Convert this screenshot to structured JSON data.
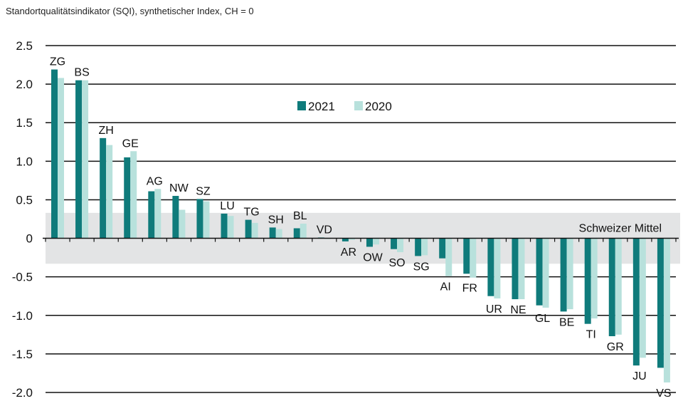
{
  "chart_data": {
    "type": "bar",
    "title": "Standortqualitätsindikator (SQI), synthetischer Index, CH = 0",
    "xlabel": "",
    "ylabel": "",
    "ylim": [
      -2.0,
      2.5
    ],
    "yticks": [
      "2.5",
      "2.0",
      "1.5",
      "1.0",
      "0.5",
      "0",
      "-0.5",
      "-1.0",
      "-1.5",
      "-2.0"
    ],
    "grid": true,
    "legend": "top-center",
    "band": {
      "label": "Schweizer Mittel",
      "range": [
        -0.33,
        0.33
      ],
      "color": "#e3e4e5"
    },
    "categories": [
      "ZG",
      "BS",
      "ZH",
      "GE",
      "AG",
      "NW",
      "SZ",
      "LU",
      "TG",
      "SH",
      "BL",
      "VD",
      "AR",
      "OW",
      "SO",
      "SG",
      "AI",
      "FR",
      "UR",
      "NE",
      "GL",
      "BE",
      "TI",
      "GR",
      "JU",
      "VS"
    ],
    "series": [
      {
        "name": "2021",
        "color": "#0f7b7b",
        "values": [
          2.19,
          2.05,
          1.3,
          1.05,
          0.61,
          0.55,
          0.51,
          0.32,
          0.24,
          0.14,
          0.13,
          0.01,
          -0.04,
          -0.11,
          -0.14,
          -0.23,
          -0.26,
          -0.46,
          -0.75,
          -0.79,
          -0.87,
          -0.95,
          -1.11,
          -1.27,
          -1.65,
          -1.68
        ]
      },
      {
        "name": "2020",
        "color": "#b8e1dc",
        "values": [
          2.08,
          2.05,
          1.21,
          1.13,
          0.64,
          0.37,
          0.48,
          0.29,
          0.2,
          0.12,
          0.19,
          0.0,
          -0.02,
          -0.08,
          -0.18,
          -0.22,
          -0.49,
          -0.51,
          -0.78,
          -0.79,
          -0.9,
          -0.92,
          -1.04,
          -1.25,
          -1.55,
          -1.87
        ]
      }
    ]
  }
}
